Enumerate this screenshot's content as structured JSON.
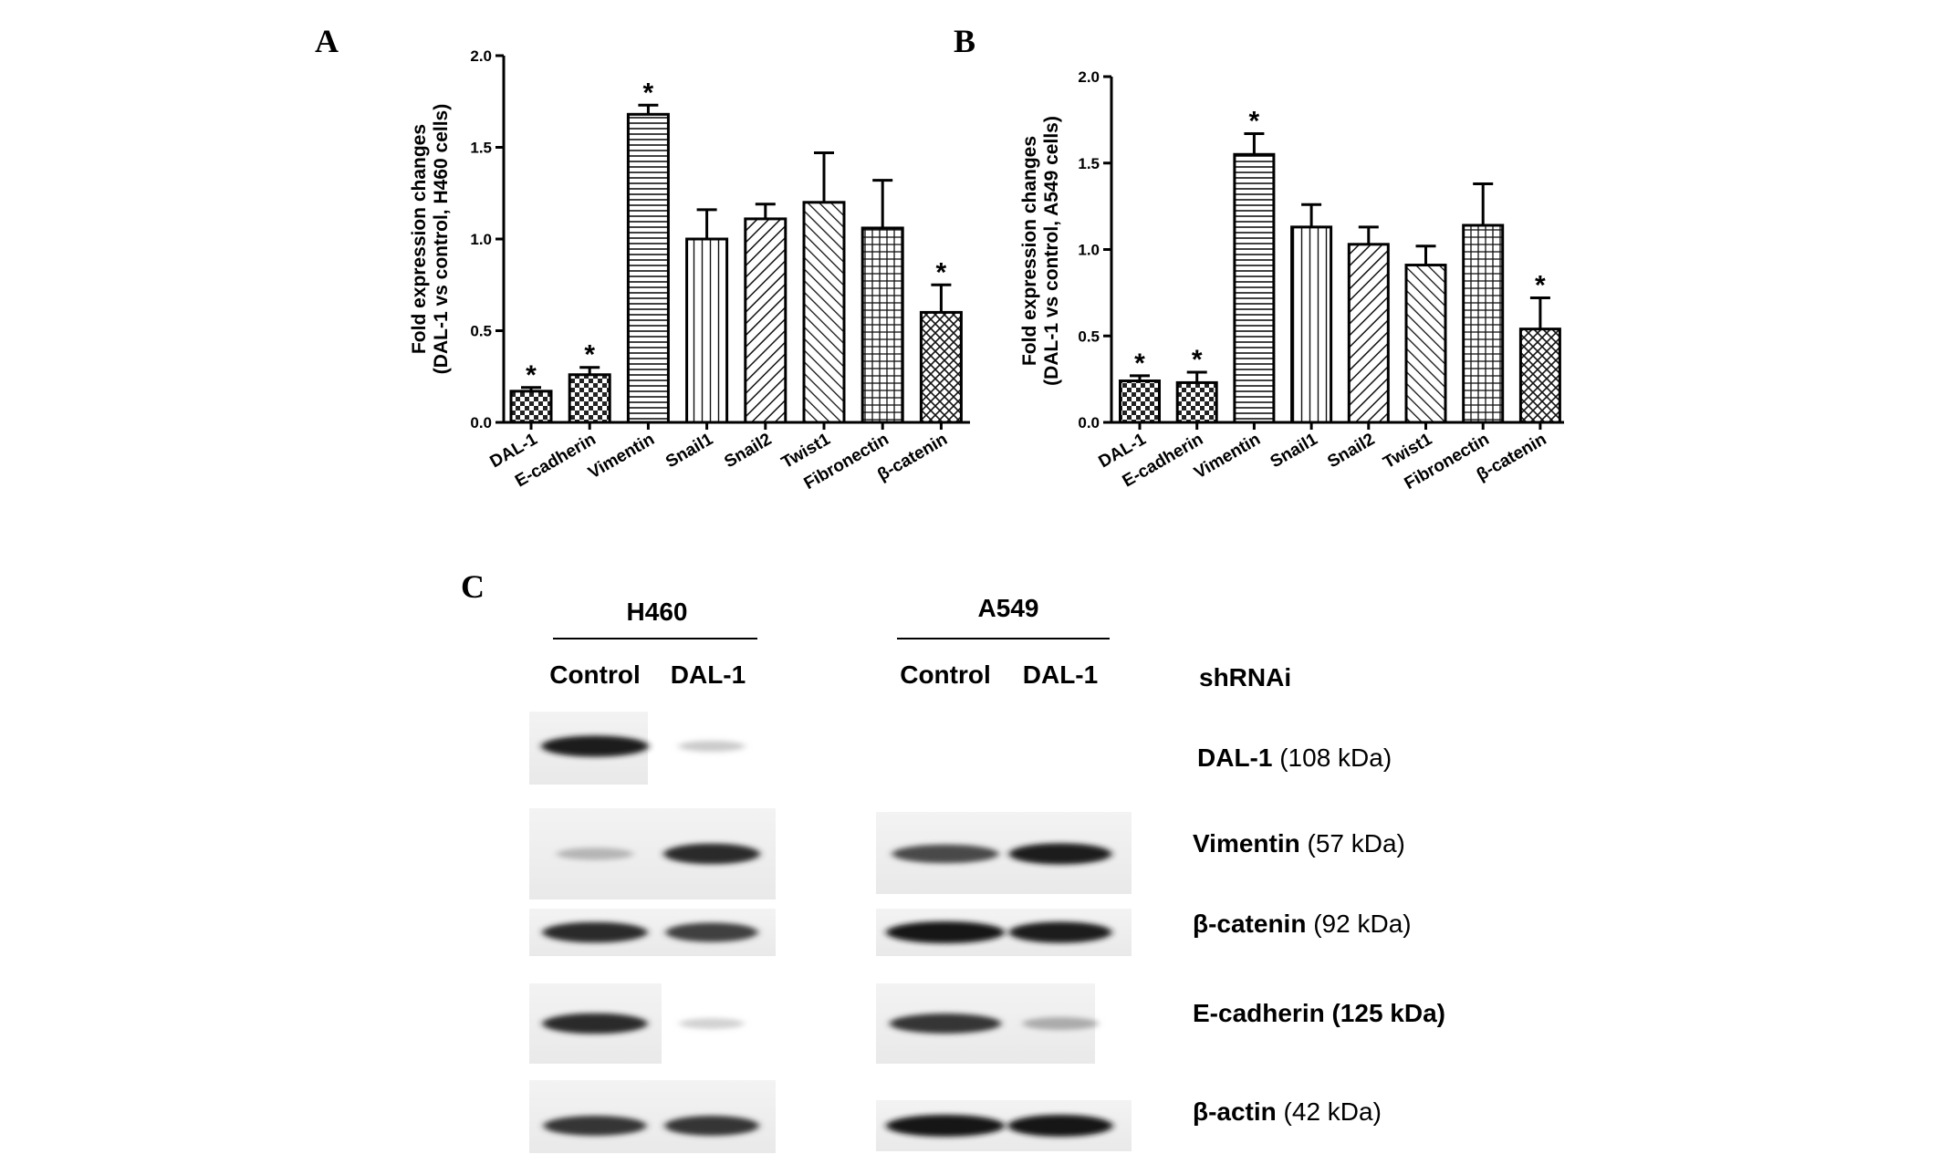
{
  "panels": {
    "a": "A",
    "b": "B",
    "c": "C"
  },
  "chart_data": [
    {
      "type": "bar",
      "panel": "A",
      "ylabel_line1": "Fold expression changes",
      "ylabel_line2": "(DAL-1 vs control, H460 cells)",
      "ylim": [
        0,
        2.0
      ],
      "yticks": [
        "0.0",
        "0.5",
        "1.0",
        "1.5",
        "2.0"
      ],
      "categories": [
        "DAL-1",
        "E-cadherin",
        "Vimentin",
        "Snail1",
        "Snail2",
        "Twist1",
        "Fibronectin",
        "β-catenin"
      ],
      "values": [
        0.17,
        0.26,
        1.68,
        1.0,
        1.11,
        1.2,
        1.06,
        0.6
      ],
      "errors": [
        0.02,
        0.04,
        0.05,
        0.16,
        0.08,
        0.27,
        0.26,
        0.15
      ],
      "significant": [
        "*",
        "*",
        "*",
        "",
        "",
        "",
        "",
        "*"
      ]
    },
    {
      "type": "bar",
      "panel": "B",
      "ylabel_line1": "Fold expression changes",
      "ylabel_line2": "(DAL-1 vs control, A549 cells)",
      "ylim": [
        0,
        2.0
      ],
      "yticks": [
        "0.0",
        "0.5",
        "1.0",
        "1.5",
        "2.0"
      ],
      "categories": [
        "DAL-1",
        "E-cadherin",
        "Vimentin",
        "Snail1",
        "Snail2",
        "Twist1",
        "Fibronectin",
        "β-catenin"
      ],
      "values": [
        0.24,
        0.23,
        1.55,
        1.13,
        1.03,
        0.91,
        1.14,
        0.54
      ],
      "errors": [
        0.03,
        0.06,
        0.12,
        0.13,
        0.1,
        0.11,
        0.24,
        0.18
      ],
      "significant": [
        "*",
        "*",
        "*",
        "",
        "",
        "",
        "",
        "*"
      ]
    }
  ],
  "blot": {
    "groups": [
      {
        "name": "H460",
        "lanes": [
          "Control",
          "DAL-1"
        ]
      },
      {
        "name": "A549",
        "lanes": [
          "Control",
          "DAL-1"
        ]
      }
    ],
    "column_header": "shRNAi",
    "rows": [
      {
        "protein": "DAL-1",
        "size": "(108 kDa)",
        "intensities": [
          0.95,
          0.15,
          0.0,
          0.0
        ]
      },
      {
        "protein": "Vimentin",
        "size": "(57 kDa)",
        "intensities": [
          0.25,
          0.9,
          0.75,
          0.95
        ]
      },
      {
        "protein": "β-catenin",
        "size": "(92 kDa)",
        "intensities": [
          0.9,
          0.8,
          1.0,
          0.95
        ]
      },
      {
        "protein": "E-cadherin",
        "size": "(125 kDa)",
        "intensities": [
          0.9,
          0.12,
          0.85,
          0.3
        ]
      },
      {
        "protein": "β-actin",
        "size": "(42 kDa)",
        "intensities": [
          0.85,
          0.85,
          1.0,
          1.0
        ]
      }
    ]
  }
}
